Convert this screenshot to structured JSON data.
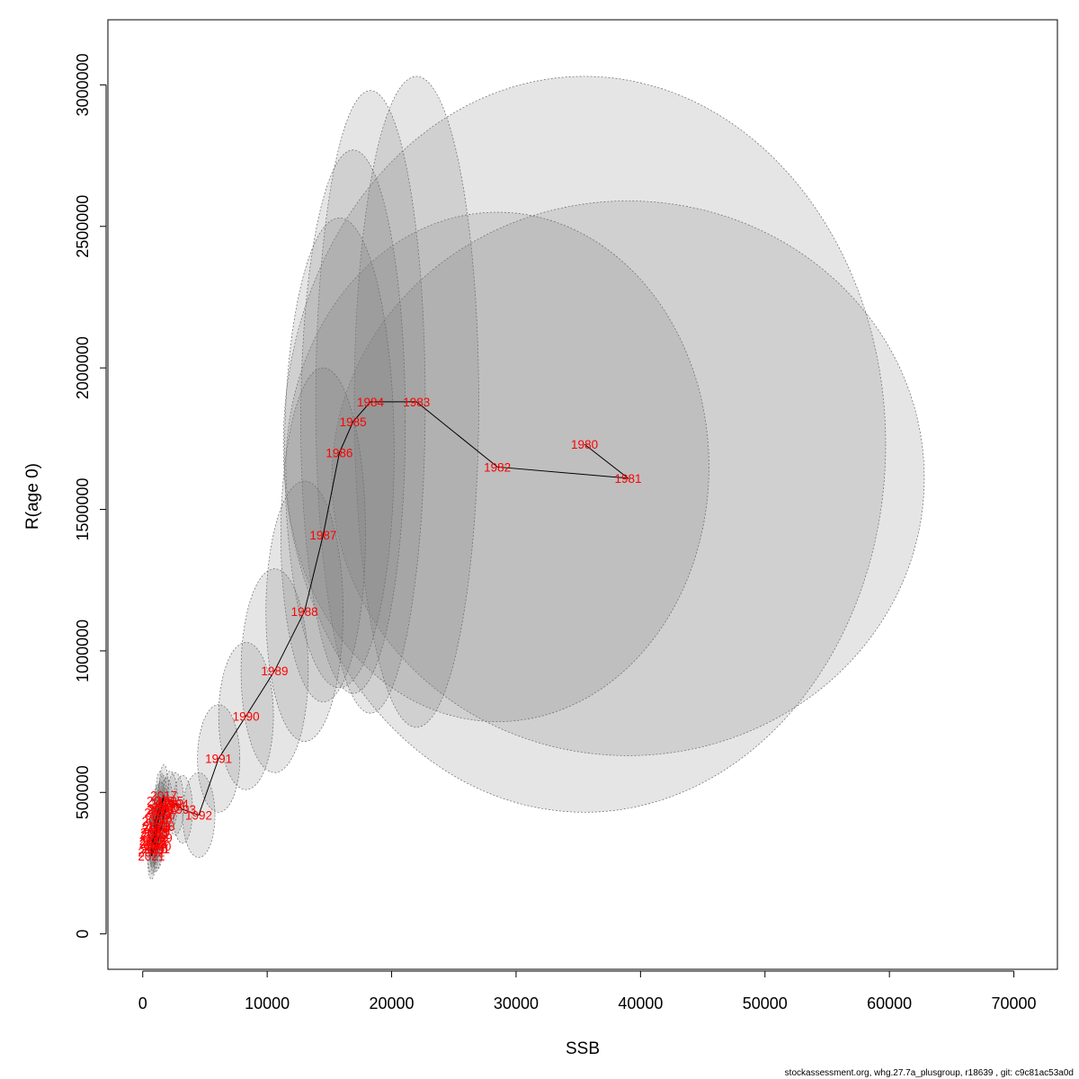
{
  "chart_data": {
    "type": "scatter",
    "title": "",
    "xlabel": "SSB",
    "ylabel": "R(age 0)",
    "xlim": [
      -2800,
      73500
    ],
    "ylim": [
      -125000,
      3230000
    ],
    "xticks": [
      0,
      10000,
      20000,
      30000,
      40000,
      50000,
      60000,
      70000
    ],
    "yticks": [
      0,
      500000,
      1000000,
      1500000,
      2000000,
      2500000,
      3000000
    ],
    "grid": false,
    "legend": "none",
    "series": [
      {
        "points": [
          {
            "year": "1980",
            "ssb": 35500,
            "r": 1730000,
            "sd_ssb": 24200,
            "sd_r": 1300000
          },
          {
            "year": "1981",
            "ssb": 39000,
            "r": 1610000,
            "sd_ssb": 23800,
            "sd_r": 980000
          },
          {
            "year": "1982",
            "ssb": 28500,
            "r": 1650000,
            "sd_ssb": 17000,
            "sd_r": 900000
          },
          {
            "year": "1983",
            "ssb": 22000,
            "r": 1880000,
            "sd_ssb": 5000,
            "sd_r": 1150000
          },
          {
            "year": "1984",
            "ssb": 18300,
            "r": 1880000,
            "sd_ssb": 4400,
            "sd_r": 1100000
          },
          {
            "year": "1985",
            "ssb": 16900,
            "r": 1810000,
            "sd_ssb": 4200,
            "sd_r": 960000
          },
          {
            "year": "1986",
            "ssb": 15800,
            "r": 1700000,
            "sd_ssb": 4400,
            "sd_r": 830000
          },
          {
            "year": "1987",
            "ssb": 14500,
            "r": 1410000,
            "sd_ssb": 3400,
            "sd_r": 590000
          },
          {
            "year": "1988",
            "ssb": 13000,
            "r": 1140000,
            "sd_ssb": 3100,
            "sd_r": 460000
          },
          {
            "year": "1989",
            "ssb": 10600,
            "r": 930000,
            "sd_ssb": 2700,
            "sd_r": 360000
          },
          {
            "year": "1990",
            "ssb": 8300,
            "r": 770000,
            "sd_ssb": 2200,
            "sd_r": 260000
          },
          {
            "year": "1991",
            "ssb": 6100,
            "r": 620000,
            "sd_ssb": 1700,
            "sd_r": 190000
          },
          {
            "year": "1992",
            "ssb": 4500,
            "r": 420000,
            "sd_ssb": 1300,
            "sd_r": 150000
          },
          {
            "year": "1993",
            "ssb": 3200,
            "r": 440000,
            "sd_ssb": 800,
            "sd_r": 120000
          },
          {
            "year": "1994",
            "ssb": 2600,
            "r": 460000,
            "sd_ssb": 700,
            "sd_r": 110000
          },
          {
            "year": "1995",
            "ssb": 2200,
            "r": 470000,
            "sd_ssb": 600,
            "sd_r": 105000
          },
          {
            "year": "1996",
            "ssb": 1900,
            "r": 450000,
            "sd_ssb": 550,
            "sd_r": 100000
          },
          {
            "year": "1997",
            "ssb": 1700,
            "r": 420000,
            "sd_ssb": 500,
            "sd_r": 95000
          },
          {
            "year": "1998",
            "ssb": 1500,
            "r": 380000,
            "sd_ssb": 450,
            "sd_r": 90000
          },
          {
            "year": "1999",
            "ssb": 1300,
            "r": 340000,
            "sd_ssb": 400,
            "sd_r": 85000
          },
          {
            "year": "2000",
            "ssb": 1200,
            "r": 310000,
            "sd_ssb": 380,
            "sd_r": 80000
          },
          {
            "year": "2001",
            "ssb": 1100,
            "r": 300000,
            "sd_ssb": 360,
            "sd_r": 78000
          },
          {
            "year": "2002",
            "ssb": 1000,
            "r": 330000,
            "sd_ssb": 350,
            "sd_r": 82000
          },
          {
            "year": "2003",
            "ssb": 900,
            "r": 360000,
            "sd_ssb": 330,
            "sd_r": 86000
          },
          {
            "year": "2004",
            "ssb": 1000,
            "r": 400000,
            "sd_ssb": 340,
            "sd_r": 92000
          },
          {
            "year": "2005",
            "ssb": 1200,
            "r": 430000,
            "sd_ssb": 360,
            "sd_r": 98000
          },
          {
            "year": "2006",
            "ssb": 1400,
            "r": 470000,
            "sd_ssb": 380,
            "sd_r": 104000
          },
          {
            "year": "2007",
            "ssb": 1500,
            "r": 440000,
            "sd_ssb": 390,
            "sd_r": 98000
          },
          {
            "year": "2008",
            "ssb": 1300,
            "r": 410000,
            "sd_ssb": 370,
            "sd_r": 94000
          },
          {
            "year": "2009",
            "ssb": 1100,
            "r": 380000,
            "sd_ssb": 350,
            "sd_r": 90000
          },
          {
            "year": "2010",
            "ssb": 900,
            "r": 350000,
            "sd_ssb": 330,
            "sd_r": 86000
          },
          {
            "year": "2011",
            "ssb": 800,
            "r": 320000,
            "sd_ssb": 320,
            "sd_r": 82000
          },
          {
            "year": "2012",
            "ssb": 700,
            "r": 290000,
            "sd_ssb": 300,
            "sd_r": 78000
          },
          {
            "year": "2013",
            "ssb": 800,
            "r": 330000,
            "sd_ssb": 310,
            "sd_r": 84000
          },
          {
            "year": "2014",
            "ssb": 1000,
            "r": 370000,
            "sd_ssb": 330,
            "sd_r": 88000
          },
          {
            "year": "2015",
            "ssb": 1300,
            "r": 410000,
            "sd_ssb": 350,
            "sd_r": 94000
          },
          {
            "year": "2016",
            "ssb": 1600,
            "r": 460000,
            "sd_ssb": 380,
            "sd_r": 102000
          },
          {
            "year": "2017",
            "ssb": 1700,
            "r": 490000,
            "sd_ssb": 400,
            "sd_r": 108000
          },
          {
            "year": "2018",
            "ssb": 1400,
            "r": 440000,
            "sd_ssb": 380,
            "sd_r": 100000
          },
          {
            "year": "2019",
            "ssb": 1100,
            "r": 360000,
            "sd_ssb": 360,
            "sd_r": 92000
          },
          {
            "year": "2020",
            "ssb": 900,
            "r": 300000,
            "sd_ssb": 340,
            "sd_r": 86000
          },
          {
            "year": "2021",
            "ssb": 700,
            "r": 275000,
            "sd_ssb": 320,
            "sd_r": 82000
          },
          {
            "year": "2022",
            "ssb": 800,
            "r": 320000,
            "sd_ssb": 330,
            "sd_r": 86000
          },
          {
            "year": "2023",
            "ssb": 1100,
            "r": 380000,
            "sd_ssb": 350,
            "sd_r": 90000
          }
        ]
      }
    ],
    "colors": {
      "label": "#ff0000",
      "line": "#000000",
      "ellipse_fill": "#7f7f7f",
      "ellipse_stroke": "#6a6a6a"
    }
  },
  "footer": "stockassessment.org, whg.27.7a_plusgroup, r18639 , git: c9c81ac53a0d"
}
